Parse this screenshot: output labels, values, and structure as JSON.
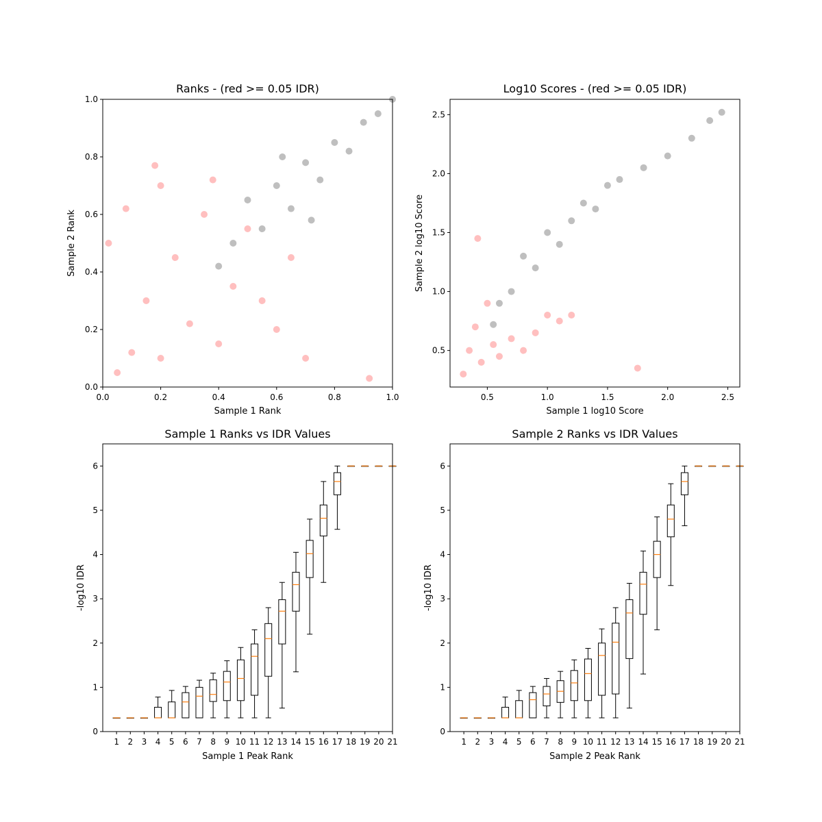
{
  "chart_data": [
    {
      "type": "scatter",
      "title": "Ranks - (red >= 0.05 IDR)",
      "xlabel": "Sample 1 Rank",
      "ylabel": "Sample 2 Rank",
      "xlim": [
        0,
        1
      ],
      "ylim": [
        0,
        1
      ],
      "xticks": [
        "0.0",
        "0.2",
        "0.4",
        "0.6",
        "0.8",
        "1.0"
      ],
      "yticks": [
        "0.0",
        "0.2",
        "0.4",
        "0.6",
        "0.8",
        "1.0"
      ],
      "grid": false,
      "series": [
        {
          "color": "#ff0000",
          "alpha": 0.07,
          "points": [
            [
              0.05,
              0.05
            ],
            [
              0.1,
              0.12
            ],
            [
              0.15,
              0.3
            ],
            [
              0.2,
              0.1
            ],
            [
              0.25,
              0.45
            ],
            [
              0.3,
              0.22
            ],
            [
              0.35,
              0.6
            ],
            [
              0.4,
              0.15
            ],
            [
              0.45,
              0.35
            ],
            [
              0.5,
              0.55
            ],
            [
              0.55,
              0.3
            ],
            [
              0.6,
              0.2
            ],
            [
              0.65,
              0.45
            ],
            [
              0.7,
              0.1
            ],
            [
              0.02,
              0.5
            ],
            [
              0.08,
              0.62
            ],
            [
              0.2,
              0.7
            ],
            [
              0.38,
              0.72
            ],
            [
              0.18,
              0.77
            ],
            [
              0.92,
              0.03
            ]
          ]
        },
        {
          "color": "#000000",
          "alpha": 0.07,
          "points": [
            [
              0.4,
              0.42
            ],
            [
              0.45,
              0.5
            ],
            [
              0.5,
              0.65
            ],
            [
              0.55,
              0.55
            ],
            [
              0.6,
              0.7
            ],
            [
              0.65,
              0.62
            ],
            [
              0.7,
              0.78
            ],
            [
              0.75,
              0.72
            ],
            [
              0.8,
              0.85
            ],
            [
              0.85,
              0.82
            ],
            [
              0.9,
              0.92
            ],
            [
              0.95,
              0.95
            ],
            [
              1.0,
              1.0
            ],
            [
              0.62,
              0.8
            ],
            [
              0.72,
              0.58
            ]
          ]
        }
      ]
    },
    {
      "type": "scatter",
      "title": "Log10 Scores - (red >= 0.05 IDR)",
      "xlabel": "Sample 1 log10 Score",
      "ylabel": "Sample 2 log10 Score",
      "xlim": [
        0.19,
        2.6
      ],
      "ylim": [
        0.19,
        2.63
      ],
      "xticks": [
        0.5,
        1.0,
        1.5,
        2.0,
        2.5
      ],
      "yticks": [
        0.5,
        1.0,
        1.5,
        2.0,
        2.5
      ],
      "xticklabels": [
        "0.5",
        "1.0",
        "1.5",
        "2.0",
        "2.5"
      ],
      "yticklabels": [
        "0.5",
        "1.0",
        "1.5",
        "2.0",
        "2.5"
      ],
      "grid": false,
      "series": [
        {
          "color": "#ff0000",
          "alpha": 0.07,
          "points": [
            [
              0.3,
              0.3
            ],
            [
              0.35,
              0.5
            ],
            [
              0.4,
              0.7
            ],
            [
              0.45,
              0.4
            ],
            [
              0.5,
              0.9
            ],
            [
              0.55,
              0.55
            ],
            [
              0.6,
              0.45
            ],
            [
              0.7,
              0.6
            ],
            [
              0.8,
              0.5
            ],
            [
              0.9,
              0.65
            ],
            [
              1.0,
              0.8
            ],
            [
              1.1,
              0.75
            ],
            [
              1.2,
              0.8
            ],
            [
              0.42,
              1.45
            ],
            [
              1.75,
              0.35
            ]
          ]
        },
        {
          "color": "#000000",
          "alpha": 0.07,
          "points": [
            [
              0.55,
              0.72
            ],
            [
              0.6,
              0.9
            ],
            [
              0.7,
              1.0
            ],
            [
              0.8,
              1.3
            ],
            [
              0.9,
              1.2
            ],
            [
              1.0,
              1.5
            ],
            [
              1.1,
              1.4
            ],
            [
              1.2,
              1.6
            ],
            [
              1.3,
              1.75
            ],
            [
              1.4,
              1.7
            ],
            [
              1.5,
              1.9
            ],
            [
              1.6,
              1.95
            ],
            [
              1.8,
              2.05
            ],
            [
              2.0,
              2.15
            ],
            [
              2.2,
              2.3
            ],
            [
              2.35,
              2.45
            ],
            [
              2.45,
              2.52
            ]
          ]
        }
      ]
    },
    {
      "type": "box",
      "title": "Sample 1 Ranks vs IDR Values",
      "xlabel": "Sample 1 Peak Rank",
      "ylabel": "-log10 IDR",
      "xlim": [
        0,
        21
      ],
      "ylim": [
        0,
        6.5
      ],
      "xticks": [
        "1",
        "2",
        "3",
        "4",
        "5",
        "6",
        "7",
        "8",
        "9",
        "10",
        "11",
        "12",
        "13",
        "14",
        "15",
        "16",
        "17",
        "18",
        "19",
        "20",
        "21"
      ],
      "yticks": [
        "0",
        "1",
        "2",
        "3",
        "4",
        "5",
        "6"
      ],
      "grid": false,
      "boxes": [
        {
          "pos": 1,
          "wlo": 0.31,
          "q1": 0.31,
          "med": 0.31,
          "q3": 0.31,
          "whi": 0.31
        },
        {
          "pos": 2,
          "wlo": 0.31,
          "q1": 0.31,
          "med": 0.31,
          "q3": 0.31,
          "whi": 0.31
        },
        {
          "pos": 3,
          "wlo": 0.31,
          "q1": 0.31,
          "med": 0.31,
          "q3": 0.31,
          "whi": 0.31
        },
        {
          "pos": 4,
          "wlo": 0.31,
          "q1": 0.31,
          "med": 0.31,
          "q3": 0.55,
          "whi": 0.78
        },
        {
          "pos": 5,
          "wlo": 0.31,
          "q1": 0.31,
          "med": 0.31,
          "q3": 0.67,
          "whi": 0.93
        },
        {
          "pos": 6,
          "wlo": 0.31,
          "q1": 0.31,
          "med": 0.67,
          "q3": 0.88,
          "whi": 1.02
        },
        {
          "pos": 7,
          "wlo": 0.31,
          "q1": 0.31,
          "med": 0.8,
          "q3": 1.0,
          "whi": 1.16
        },
        {
          "pos": 8,
          "wlo": 0.31,
          "q1": 0.68,
          "med": 0.84,
          "q3": 1.17,
          "whi": 1.32
        },
        {
          "pos": 9,
          "wlo": 0.31,
          "q1": 0.7,
          "med": 1.12,
          "q3": 1.36,
          "whi": 1.6
        },
        {
          "pos": 10,
          "wlo": 0.31,
          "q1": 0.7,
          "med": 1.2,
          "q3": 1.62,
          "whi": 1.9
        },
        {
          "pos": 11,
          "wlo": 0.31,
          "q1": 0.82,
          "med": 1.7,
          "q3": 1.98,
          "whi": 2.3
        },
        {
          "pos": 12,
          "wlo": 0.31,
          "q1": 1.25,
          "med": 2.1,
          "q3": 2.44,
          "whi": 2.8
        },
        {
          "pos": 13,
          "wlo": 0.53,
          "q1": 1.98,
          "med": 2.72,
          "q3": 2.98,
          "whi": 3.37
        },
        {
          "pos": 14,
          "wlo": 1.35,
          "q1": 2.72,
          "med": 3.32,
          "q3": 3.6,
          "whi": 4.05
        },
        {
          "pos": 15,
          "wlo": 2.2,
          "q1": 3.48,
          "med": 4.02,
          "q3": 4.32,
          "whi": 4.8
        },
        {
          "pos": 16,
          "wlo": 3.37,
          "q1": 4.42,
          "med": 4.82,
          "q3": 5.12,
          "whi": 5.65
        },
        {
          "pos": 17,
          "wlo": 4.57,
          "q1": 5.35,
          "med": 5.65,
          "q3": 5.85,
          "whi": 6.0
        },
        {
          "pos": 18,
          "wlo": 6.0,
          "q1": 6.0,
          "med": 6.0,
          "q3": 6.0,
          "whi": 6.0
        },
        {
          "pos": 19,
          "wlo": 6.0,
          "q1": 6.0,
          "med": 6.0,
          "q3": 6.0,
          "whi": 6.0
        },
        {
          "pos": 20,
          "wlo": 6.0,
          "q1": 6.0,
          "med": 6.0,
          "q3": 6.0,
          "whi": 6.0
        },
        {
          "pos": 21,
          "wlo": 6.0,
          "q1": 6.0,
          "med": 6.0,
          "q3": 6.0,
          "whi": 6.0
        }
      ]
    },
    {
      "type": "box",
      "title": "Sample 2 Ranks vs IDR Values",
      "xlabel": "Sample 2 Peak Rank",
      "ylabel": "-log10 IDR",
      "xlim": [
        0,
        21
      ],
      "ylim": [
        0,
        6.5
      ],
      "xticks": [
        "1",
        "2",
        "3",
        "4",
        "5",
        "6",
        "7",
        "8",
        "9",
        "10",
        "11",
        "12",
        "13",
        "14",
        "15",
        "16",
        "17",
        "18",
        "19",
        "20",
        "21"
      ],
      "yticks": [
        "0",
        "1",
        "2",
        "3",
        "4",
        "5",
        "6"
      ],
      "grid": false,
      "boxes": [
        {
          "pos": 1,
          "wlo": 0.31,
          "q1": 0.31,
          "med": 0.31,
          "q3": 0.31,
          "whi": 0.31
        },
        {
          "pos": 2,
          "wlo": 0.31,
          "q1": 0.31,
          "med": 0.31,
          "q3": 0.31,
          "whi": 0.31
        },
        {
          "pos": 3,
          "wlo": 0.31,
          "q1": 0.31,
          "med": 0.31,
          "q3": 0.31,
          "whi": 0.31
        },
        {
          "pos": 4,
          "wlo": 0.31,
          "q1": 0.31,
          "med": 0.31,
          "q3": 0.55,
          "whi": 0.78
        },
        {
          "pos": 5,
          "wlo": 0.31,
          "q1": 0.31,
          "med": 0.31,
          "q3": 0.7,
          "whi": 0.93
        },
        {
          "pos": 6,
          "wlo": 0.31,
          "q1": 0.31,
          "med": 0.72,
          "q3": 0.88,
          "whi": 1.02
        },
        {
          "pos": 7,
          "wlo": 0.31,
          "q1": 0.58,
          "med": 0.85,
          "q3": 1.02,
          "whi": 1.2
        },
        {
          "pos": 8,
          "wlo": 0.31,
          "q1": 0.66,
          "med": 0.91,
          "q3": 1.15,
          "whi": 1.36
        },
        {
          "pos": 9,
          "wlo": 0.31,
          "q1": 0.7,
          "med": 1.1,
          "q3": 1.38,
          "whi": 1.62
        },
        {
          "pos": 10,
          "wlo": 0.31,
          "q1": 0.7,
          "med": 1.31,
          "q3": 1.64,
          "whi": 1.88
        },
        {
          "pos": 11,
          "wlo": 0.31,
          "q1": 0.82,
          "med": 1.72,
          "q3": 2.0,
          "whi": 2.32
        },
        {
          "pos": 12,
          "wlo": 0.31,
          "q1": 0.85,
          "med": 2.02,
          "q3": 2.45,
          "whi": 2.8
        },
        {
          "pos": 13,
          "wlo": 0.53,
          "q1": 1.65,
          "med": 2.68,
          "q3": 2.98,
          "whi": 3.35
        },
        {
          "pos": 14,
          "wlo": 1.3,
          "q1": 2.65,
          "med": 3.33,
          "q3": 3.6,
          "whi": 4.08
        },
        {
          "pos": 15,
          "wlo": 2.3,
          "q1": 3.48,
          "med": 4.0,
          "q3": 4.3,
          "whi": 4.85
        },
        {
          "pos": 16,
          "wlo": 3.3,
          "q1": 4.4,
          "med": 4.8,
          "q3": 5.12,
          "whi": 5.6
        },
        {
          "pos": 17,
          "wlo": 4.65,
          "q1": 5.35,
          "med": 5.65,
          "q3": 5.85,
          "whi": 6.0
        },
        {
          "pos": 18,
          "wlo": 6.0,
          "q1": 6.0,
          "med": 6.0,
          "q3": 6.0,
          "whi": 6.0
        },
        {
          "pos": 19,
          "wlo": 6.0,
          "q1": 6.0,
          "med": 6.0,
          "q3": 6.0,
          "whi": 6.0
        },
        {
          "pos": 20,
          "wlo": 6.0,
          "q1": 6.0,
          "med": 6.0,
          "q3": 6.0,
          "whi": 6.0
        },
        {
          "pos": 21,
          "wlo": 6.0,
          "q1": 6.0,
          "med": 6.0,
          "q3": 6.0,
          "whi": 6.0
        }
      ]
    }
  ]
}
